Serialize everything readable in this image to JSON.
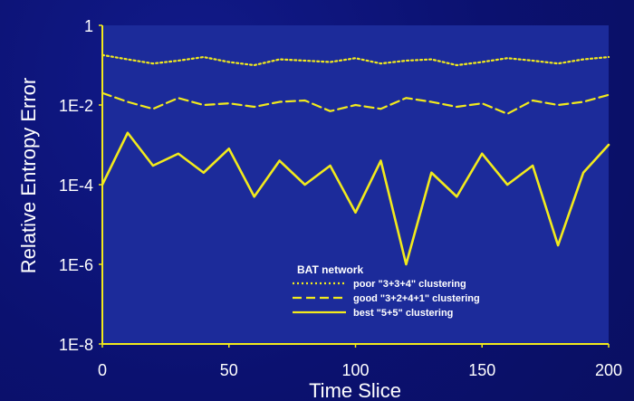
{
  "colors": {
    "background": "#0b1170",
    "plot_background": "#1c2b9a",
    "series": "#f2ea1c",
    "text": "#ffffff"
  },
  "chart_data": {
    "type": "line",
    "title": "",
    "xlabel": "Time Slice",
    "ylabel": "Relative Entropy Error",
    "xlim": [
      0,
      200
    ],
    "ylim": [
      1e-08,
      1
    ],
    "y_scale": "log",
    "x_ticks": [
      0,
      50,
      100,
      150,
      200
    ],
    "y_ticks": [
      1,
      0.01,
      0.0001,
      1e-06,
      1e-08
    ],
    "x_tick_labels": [
      "0",
      "50",
      "100",
      "150",
      "200"
    ],
    "y_tick_labels": [
      "1",
      "1E-2",
      "1E-4",
      "1E-6",
      "1E-8"
    ],
    "grid": false,
    "legend": {
      "title": "BAT network",
      "placement": "bottom-center"
    },
    "x": [
      0,
      10,
      20,
      30,
      40,
      50,
      60,
      70,
      80,
      90,
      100,
      110,
      120,
      130,
      140,
      150,
      160,
      170,
      180,
      190,
      200
    ],
    "series": [
      {
        "name": "poor \"3+3+4\" clustering",
        "style": "dotted",
        "values": [
          0.18,
          0.14,
          0.11,
          0.13,
          0.16,
          0.12,
          0.1,
          0.14,
          0.13,
          0.12,
          0.15,
          0.11,
          0.13,
          0.14,
          0.1,
          0.12,
          0.15,
          0.13,
          0.11,
          0.14,
          0.16
        ]
      },
      {
        "name": "good \"3+2+4+1\" clustering",
        "style": "dashed",
        "values": [
          0.02,
          0.012,
          0.008,
          0.015,
          0.01,
          0.011,
          0.009,
          0.012,
          0.013,
          0.007,
          0.01,
          0.008,
          0.015,
          0.012,
          0.009,
          0.011,
          0.006,
          0.013,
          0.01,
          0.012,
          0.018
        ]
      },
      {
        "name": "best \"5+5\" clustering",
        "style": "solid",
        "values": [
          0.0001,
          0.002,
          0.0003,
          0.0006,
          0.0002,
          0.0008,
          5e-05,
          0.0004,
          0.0001,
          0.0003,
          2e-05,
          0.0004,
          1e-06,
          0.0002,
          5e-05,
          0.0006,
          0.0001,
          0.0003,
          3e-06,
          0.0002,
          0.001
        ]
      }
    ]
  }
}
